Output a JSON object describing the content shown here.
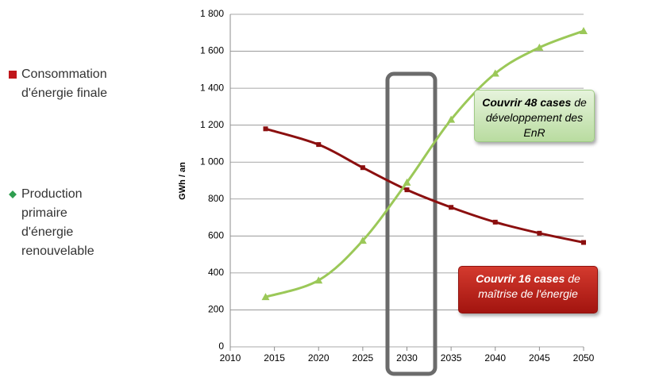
{
  "chart_data": {
    "type": "line",
    "y_label": "GWh / an",
    "x": [
      2014,
      2020,
      2025,
      2030,
      2035,
      2040,
      2045,
      2050
    ],
    "series": [
      {
        "name": "Consommation d'énergie finale",
        "color": "#8b0f0f",
        "legend_color": "#c0161b",
        "marker": "square",
        "values": [
          1180,
          1095,
          970,
          850,
          755,
          675,
          615,
          565
        ]
      },
      {
        "name": "Production primaire d'énergie renouvelable",
        "color": "#9bc858",
        "legend_color": "#2e9e4f",
        "marker": "triangle",
        "values": [
          270,
          360,
          575,
          890,
          1230,
          1480,
          1620,
          1710
        ]
      }
    ],
    "xlim": [
      2010,
      2050
    ],
    "xticks": [
      2010,
      2015,
      2020,
      2025,
      2030,
      2035,
      2040,
      2045,
      2050
    ],
    "ylim": [
      0,
      1800
    ],
    "yticks": [
      0,
      200,
      400,
      600,
      800,
      {
        "value": 1000,
        "label": "1 000"
      },
      {
        "value": 1200,
        "label": "1 200"
      },
      {
        "value": 1400,
        "label": "1 400"
      },
      {
        "value": 1600,
        "label": "1 600"
      },
      {
        "value": 1800,
        "label": "1 800"
      }
    ],
    "grid": true,
    "annotations": [
      {
        "bold": "Couvrir 48 cases",
        "text": "de développement des EnR"
      },
      {
        "bold": "Couvrir 16 cases",
        "text": "de maîtrise de l'énergie"
      }
    ]
  }
}
